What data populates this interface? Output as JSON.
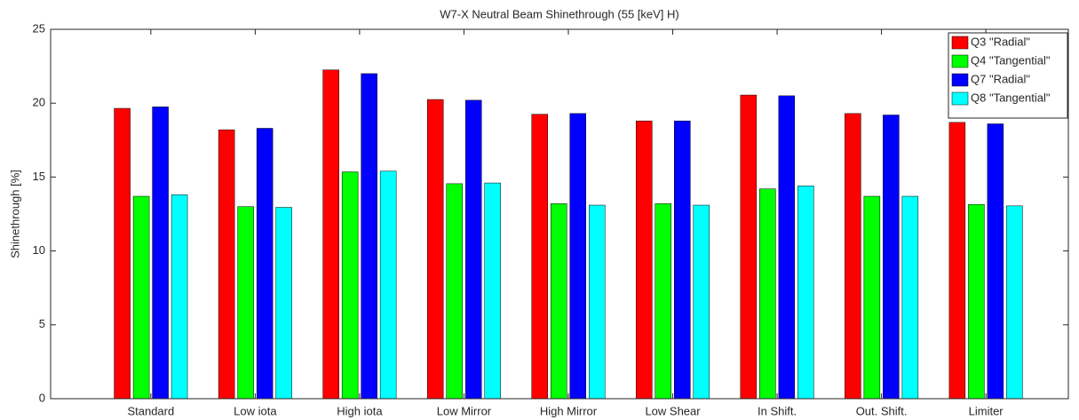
{
  "chart_data": {
    "type": "bar",
    "title": "W7-X Neutral Beam Shinethrough (55 [keV] H)",
    "y_label": "Shinethrough [%]",
    "categories": [
      "Standard",
      "Low iota",
      "High iota",
      "Low Mirror",
      "High Mirror",
      "Low Shear",
      "In Shift.",
      "Out. Shift.",
      "Limiter"
    ],
    "series": [
      {
        "name": "Q3 \"Radial\"",
        "color": "#ff0000",
        "values": [
          19.65,
          18.2,
          22.25,
          20.25,
          19.25,
          18.8,
          20.55,
          19.3,
          18.7
        ]
      },
      {
        "name": "Q4 \"Tangential\"",
        "color": "#00ff00",
        "values": [
          13.7,
          13.0,
          15.35,
          14.55,
          13.2,
          13.2,
          14.2,
          13.7,
          13.15
        ]
      },
      {
        "name": "Q7 \"Radial\"",
        "color": "#0000ff",
        "values": [
          19.75,
          18.3,
          22.0,
          20.2,
          19.3,
          18.8,
          20.5,
          19.2,
          18.6
        ]
      },
      {
        "name": "Q8 \"Tangential\"",
        "color": "#00ffff",
        "values": [
          13.8,
          12.95,
          15.4,
          14.6,
          13.1,
          13.1,
          14.4,
          13.7,
          13.05
        ]
      }
    ],
    "ylim": [
      0,
      25
    ],
    "yticks": [
      0,
      5,
      10,
      15,
      20,
      25
    ],
    "grid": false,
    "legend": "top-right"
  }
}
